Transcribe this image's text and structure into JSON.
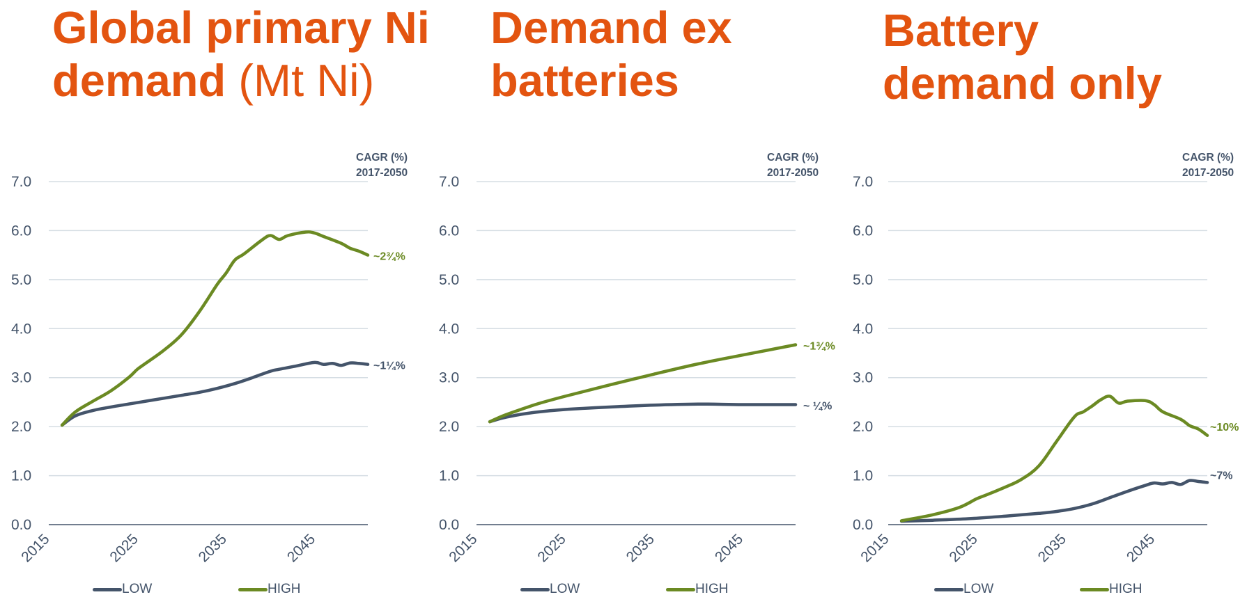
{
  "colors": {
    "title": "#e35410",
    "low": "#44546a",
    "high": "#6b8a23",
    "grid": "#d5dde3",
    "axis": "#44546a",
    "text": "#44546a"
  },
  "legend": {
    "low": "LOW",
    "high": "HIGH"
  },
  "panels": [
    {
      "title_bold": "Global primary Ni",
      "title_bold2": "demand",
      "title_light": "(Mt Ni)",
      "cagr_line1": "CAGR (%)",
      "cagr_line2": "2017-2050",
      "end_label_low": "~1¼%",
      "end_label_high": "~2¾%"
    },
    {
      "title_bold": "Demand ex",
      "title_bold2": "batteries",
      "title_light": "",
      "cagr_line1": "CAGR (%)",
      "cagr_line2": "2017-2050",
      "end_label_low": "~ ¼%",
      "end_label_high": "~1¾%"
    },
    {
      "title_bold": "Battery",
      "title_bold2": "demand only",
      "title_light": "",
      "cagr_line1": "CAGR (%)",
      "cagr_line2": "2017-2050",
      "end_label_low": "~7%",
      "end_label_high": "~10%"
    }
  ],
  "chart_data": [
    {
      "type": "line",
      "title": "Global primary Ni demand (Mt Ni)",
      "ylim": [
        0,
        7
      ],
      "yticks": [
        "0.0",
        "1.0",
        "2.0",
        "3.0",
        "4.0",
        "5.0",
        "6.0",
        "7.0"
      ],
      "ytick_values": [
        0,
        1,
        2,
        3,
        4,
        5,
        6,
        7
      ],
      "xlim": [
        2015,
        2051
      ],
      "xticks": [
        "2015",
        "2025",
        "2035",
        "2045"
      ],
      "xtick_values": [
        2015,
        2025,
        2035,
        2045
      ],
      "grid": true,
      "legend_position": "bottom",
      "series": [
        {
          "name": "LOW",
          "x": [
            2016.5,
            2018,
            2020,
            2022,
            2024,
            2026,
            2028,
            2030,
            2032,
            2034,
            2036,
            2038,
            2040,
            2041,
            2043,
            2045,
            2046,
            2047,
            2048,
            2049,
            2050,
            2051
          ],
          "values": [
            2.03,
            2.22,
            2.33,
            2.4,
            2.46,
            2.52,
            2.58,
            2.64,
            2.7,
            2.78,
            2.88,
            3.0,
            3.13,
            3.17,
            3.24,
            3.31,
            3.27,
            3.29,
            3.25,
            3.3,
            3.29,
            3.27
          ]
        },
        {
          "name": "HIGH",
          "x": [
            2016.5,
            2018,
            2020,
            2022,
            2024,
            2025,
            2026,
            2028,
            2030,
            2032,
            2034,
            2035,
            2036,
            2037,
            2039,
            2040,
            2041,
            2042,
            2044,
            2045,
            2046,
            2048,
            2049,
            2050,
            2051
          ],
          "values": [
            2.03,
            2.3,
            2.52,
            2.73,
            3.0,
            3.17,
            3.3,
            3.56,
            3.88,
            4.35,
            4.9,
            5.13,
            5.4,
            5.52,
            5.8,
            5.9,
            5.82,
            5.9,
            5.97,
            5.95,
            5.88,
            5.74,
            5.64,
            5.58,
            5.5
          ]
        }
      ]
    },
    {
      "type": "line",
      "title": "Demand ex batteries",
      "ylim": [
        0,
        7
      ],
      "yticks": [
        "0.0",
        "1.0",
        "2.0",
        "3.0",
        "4.0",
        "5.0",
        "6.0",
        "7.0"
      ],
      "ytick_values": [
        0,
        1,
        2,
        3,
        4,
        5,
        6,
        7
      ],
      "xlim": [
        2015,
        2051
      ],
      "xticks": [
        "2015",
        "2025",
        "2035",
        "2045"
      ],
      "xtick_values": [
        2015,
        2025,
        2035,
        2045
      ],
      "grid": true,
      "legend_position": "bottom",
      "series": [
        {
          "name": "LOW",
          "x": [
            2016.5,
            2018,
            2020,
            2022,
            2025,
            2030,
            2035,
            2040,
            2045,
            2051
          ],
          "values": [
            2.1,
            2.18,
            2.25,
            2.3,
            2.35,
            2.4,
            2.44,
            2.46,
            2.45,
            2.45
          ]
        },
        {
          "name": "HIGH",
          "x": [
            2016.5,
            2018,
            2020,
            2022,
            2025,
            2030,
            2035,
            2040,
            2045,
            2051
          ],
          "values": [
            2.1,
            2.22,
            2.35,
            2.47,
            2.62,
            2.85,
            3.07,
            3.28,
            3.46,
            3.67
          ]
        }
      ]
    },
    {
      "type": "line",
      "title": "Battery demand only",
      "ylim": [
        0,
        7
      ],
      "yticks": [
        "0.0",
        "1.0",
        "2.0",
        "3.0",
        "4.0",
        "5.0",
        "6.0",
        "7.0"
      ],
      "ytick_values": [
        0,
        1,
        2,
        3,
        4,
        5,
        6,
        7
      ],
      "xlim": [
        2015,
        2051
      ],
      "xticks": [
        "2015",
        "2025",
        "2035",
        "2045"
      ],
      "xtick_values": [
        2015,
        2025,
        2035,
        2045
      ],
      "grid": true,
      "legend_position": "bottom",
      "series": [
        {
          "name": "LOW",
          "x": [
            2016.5,
            2020,
            2024,
            2028,
            2032,
            2034,
            2036,
            2038,
            2040,
            2042,
            2044,
            2045,
            2046,
            2047,
            2048,
            2049,
            2050,
            2051
          ],
          "values": [
            0.07,
            0.09,
            0.12,
            0.17,
            0.23,
            0.27,
            0.33,
            0.42,
            0.55,
            0.68,
            0.8,
            0.85,
            0.83,
            0.86,
            0.82,
            0.9,
            0.88,
            0.86
          ]
        },
        {
          "name": "HIGH",
          "x": [
            2016.5,
            2020,
            2023,
            2025,
            2026,
            2028,
            2030,
            2032,
            2034,
            2036,
            2037,
            2038,
            2039,
            2040,
            2041,
            2042,
            2044,
            2045,
            2046,
            2048,
            2049,
            2050,
            2051
          ],
          "values": [
            0.08,
            0.2,
            0.35,
            0.53,
            0.6,
            0.75,
            0.92,
            1.2,
            1.7,
            2.2,
            2.3,
            2.42,
            2.55,
            2.62,
            2.48,
            2.52,
            2.53,
            2.45,
            2.3,
            2.15,
            2.02,
            1.95,
            1.82
          ]
        }
      ]
    }
  ]
}
